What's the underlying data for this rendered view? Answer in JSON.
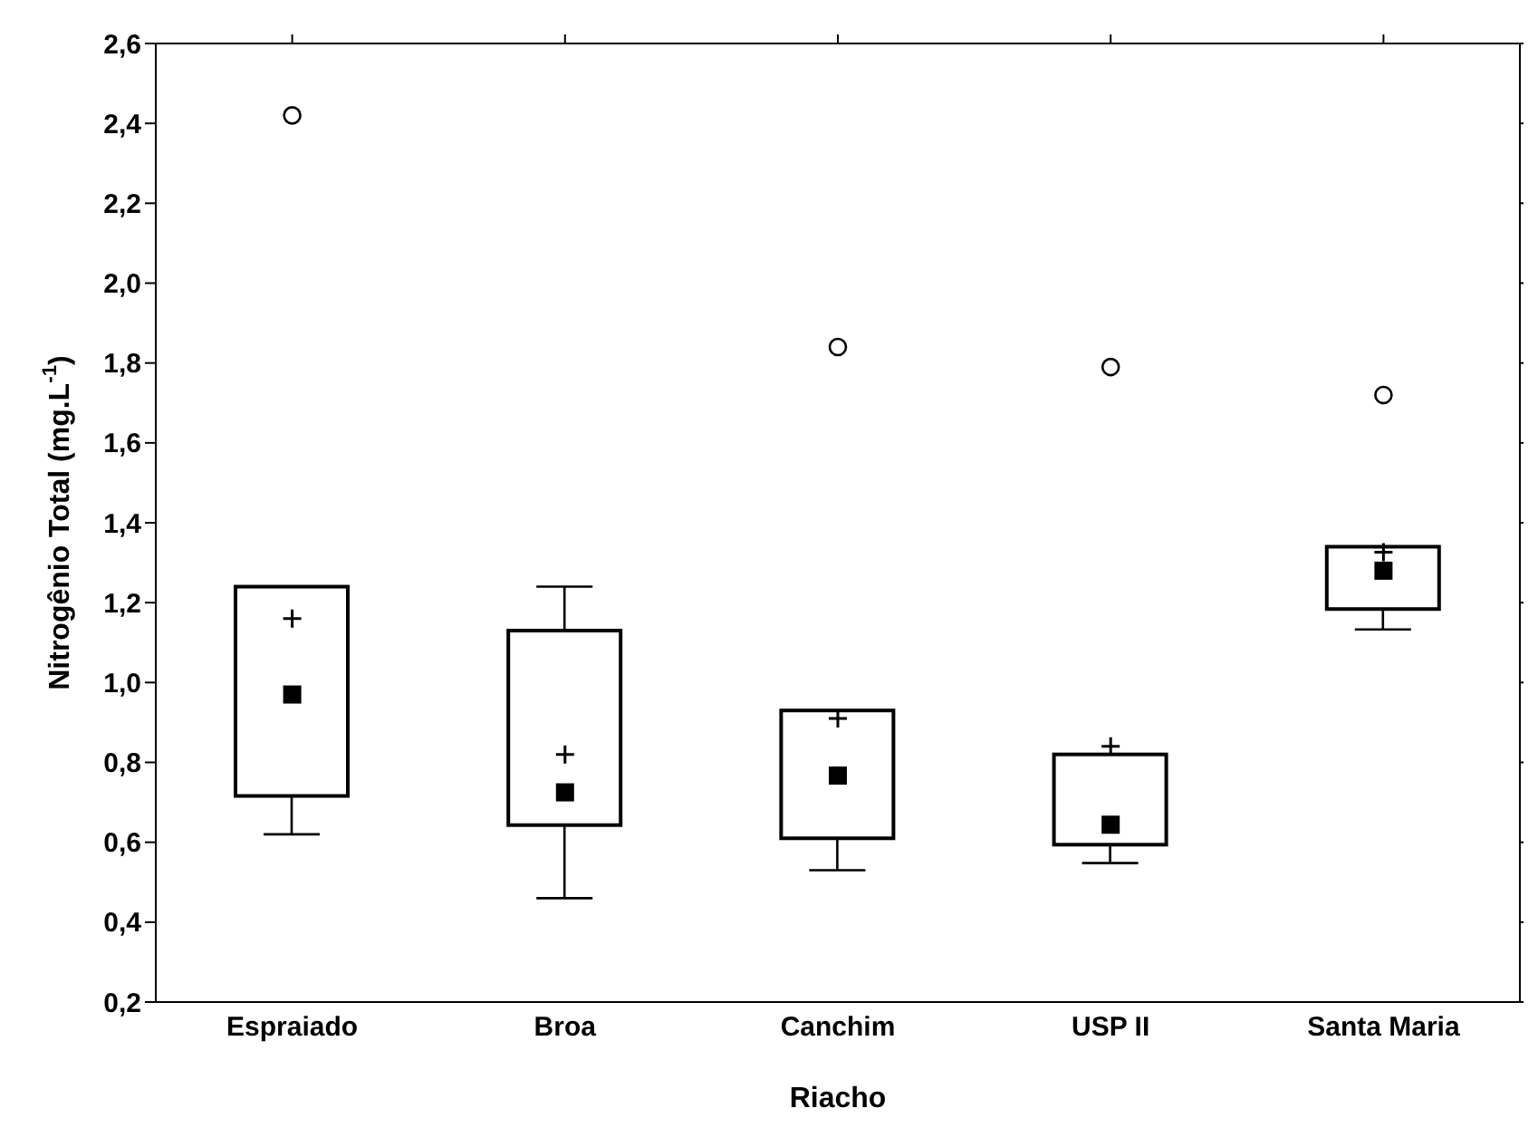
{
  "chart_data": {
    "type": "box",
    "xlabel": "Riacho",
    "ylabel": "Nitrogênio Total (mg.L$^{-1}$)",
    "categories": [
      "Espraiado",
      "Broa",
      "Canchim",
      "USP II",
      "Santa Maria"
    ],
    "boxes": [
      {
        "low": 0.62,
        "q1": 0.716,
        "median": 0.97,
        "q3": 1.24,
        "high": 1.24,
        "mean": 1.16,
        "outliers": [
          2.42
        ]
      },
      {
        "low": 0.46,
        "q1": 0.643,
        "median": 0.725,
        "q3": 1.13,
        "high": 1.24,
        "mean": 0.82
      },
      {
        "low": 0.53,
        "q1": 0.61,
        "median": 0.767,
        "q3": 0.93,
        "high": 0.93,
        "mean": 0.91,
        "outliers": [
          1.84
        ]
      },
      {
        "low": 0.548,
        "q1": 0.594,
        "median": 0.644,
        "q3": 0.82,
        "high": 0.82,
        "mean": 0.84,
        "outliers": [
          1.79
        ]
      },
      {
        "low": 1.133,
        "q1": 1.184,
        "median": 1.28,
        "q3": 1.34,
        "high": 1.34,
        "mean": 1.326,
        "outliers": [
          1.72
        ]
      }
    ],
    "ylim": [
      0.2,
      2.6
    ],
    "yticks": [
      {
        "value": 0.2,
        "label": "0,2"
      },
      {
        "value": 0.4,
        "label": "0,4"
      },
      {
        "value": 0.6,
        "label": "0,6"
      },
      {
        "value": 0.8,
        "label": "0,8"
      },
      {
        "value": 1.0,
        "label": "1,0"
      },
      {
        "value": 1.2,
        "label": "1,2"
      },
      {
        "value": 1.4,
        "label": "1,4"
      },
      {
        "value": 1.6,
        "label": "1,6"
      },
      {
        "value": 1.8,
        "label": "1,8"
      },
      {
        "value": 2.0,
        "label": "2,0"
      },
      {
        "value": 2.2,
        "label": "2,2"
      },
      {
        "value": 2.4,
        "label": "2,4"
      },
      {
        "value": 2.6,
        "label": "2,6"
      }
    ]
  }
}
